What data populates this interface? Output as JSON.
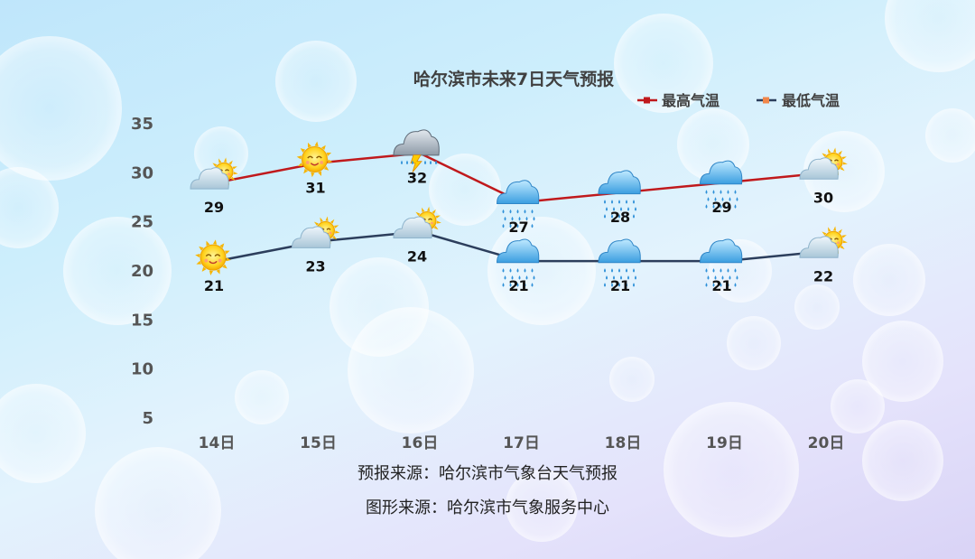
{
  "chart_data": {
    "type": "line",
    "title": "哈尔滨市未来7日天气预报",
    "categories": [
      "14日",
      "15日",
      "16日",
      "17日",
      "18日",
      "19日",
      "20日"
    ],
    "series": [
      {
        "name": "最高气温",
        "color": "#c0191c",
        "values": [
          29,
          31,
          32,
          27,
          28,
          29,
          30
        ]
      },
      {
        "name": "最低气温",
        "color": "#2c3e5c",
        "values": [
          21,
          23,
          24,
          21,
          21,
          21,
          22
        ]
      }
    ],
    "yticks": [
      5,
      10,
      15,
      20,
      25,
      30,
      35
    ],
    "ylim": [
      5,
      35
    ],
    "grid": false,
    "legend_position": "top-right",
    "weather_icons": {
      "high": [
        "partly-cloudy-icon",
        "sun-icon",
        "thunderstorm-icon",
        "rain-icon",
        "rain-icon",
        "rain-icon",
        "partly-cloudy-icon"
      ],
      "low": [
        "sun-icon",
        "partly-cloudy-icon",
        "partly-cloudy-icon",
        "rain-icon",
        "rain-icon",
        "rain-icon",
        "partly-cloudy-icon"
      ]
    },
    "legend_marker_color": "#f0864a"
  },
  "footer": {
    "source_forecast": "预报来源：哈尔滨市气象台天气预报",
    "source_graphic": "图形来源：哈尔滨市气象服务中心"
  }
}
